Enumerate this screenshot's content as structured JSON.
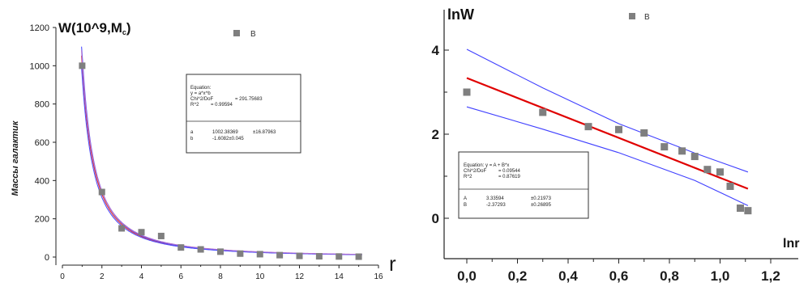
{
  "chart_data": [
    {
      "type": "scatter",
      "title": "",
      "ylabel_title": "W(10^9,M",
      "ylabel_title_subscript": "c",
      "ylabel_title_close": ")",
      "ylabel_rotated": "Массы галактик",
      "xlabel": "r",
      "xlim": [
        0,
        16
      ],
      "ylim": [
        0,
        1200
      ],
      "xticks": [
        "0",
        "2",
        "4",
        "6",
        "8",
        "10",
        "12",
        "14",
        "16"
      ],
      "yticks": [
        "0",
        "200",
        "400",
        "600",
        "800",
        "1000",
        "1200"
      ],
      "legend": {
        "symbol": "square",
        "label": "B",
        "placement": "top-center"
      },
      "series": [
        {
          "name": "B",
          "marker": "square",
          "color": "#7f7f7f",
          "points": [
            [
              1,
              1000
            ],
            [
              2,
              340
            ],
            [
              3,
              150
            ],
            [
              4,
              130
            ],
            [
              5,
              110
            ],
            [
              6,
              50
            ],
            [
              7,
              40
            ],
            [
              8,
              28
            ],
            [
              9,
              18
            ],
            [
              10,
              15
            ],
            [
              11,
              10
            ],
            [
              12,
              6
            ],
            [
              13,
              4
            ],
            [
              14,
              3
            ],
            [
              15,
              2
            ]
          ]
        }
      ],
      "fits": [
        {
          "kind": "power",
          "a": 1002.38369,
          "b": -1.6082,
          "role": "fit",
          "color": "#e03030"
        },
        {
          "kind": "power",
          "a": 1060,
          "b": -1.62,
          "role": "upper-band",
          "color": "#5050ff"
        },
        {
          "kind": "power",
          "a": 945,
          "b": -1.6,
          "role": "lower-band",
          "color": "#5050ff"
        },
        {
          "kind": "power",
          "a": 1030,
          "b": -1.58,
          "role": "band",
          "color": "#b070d0"
        }
      ],
      "equation_box": {
        "lines_top": [
          {
            "key": "Equation:",
            "value": ""
          },
          {
            "key": "y = a*x^b",
            "value": ""
          },
          {
            "key": "Chi^2/DoF",
            "value": "= 291.75683"
          },
          {
            "key": "R^2",
            "value": "= 0.99594"
          }
        ],
        "lines_bottom": [
          {
            "key": "a",
            "value": "1002.38369",
            "err": "±16.87963"
          },
          {
            "key": "b",
            "value": "-1.6082±0.045",
            "err": ""
          }
        ]
      }
    },
    {
      "type": "scatter",
      "title": "",
      "ylabel": "lnW",
      "xlabel": "lnr",
      "xlim": [
        -0.05,
        1.25
      ],
      "ylim": [
        -0.6,
        5.1
      ],
      "xticks": [
        {
          "v": 0.0,
          "label": "0,0"
        },
        {
          "v": 0.2,
          "label": "0,2"
        },
        {
          "v": 0.4,
          "label": "0,4"
        },
        {
          "v": 0.6,
          "label": "0,6"
        },
        {
          "v": 0.8,
          "label": "0,8"
        },
        {
          "v": 1.0,
          "label": "1,0"
        },
        {
          "v": 1.2,
          "label": "1,2"
        }
      ],
      "yticks": [
        {
          "v": 0,
          "label": "0"
        },
        {
          "v": 2,
          "label": "2"
        },
        {
          "v": 4,
          "label": "4"
        }
      ],
      "legend": {
        "symbol": "square",
        "label": "B",
        "placement": "top-center"
      },
      "series": [
        {
          "name": "B",
          "marker": "square",
          "color": "#7f7f7f",
          "points": [
            [
              0.0,
              3.0
            ],
            [
              0.3,
              2.52
            ],
            [
              0.48,
              2.18
            ],
            [
              0.6,
              2.11
            ],
            [
              0.7,
              2.03
            ],
            [
              0.78,
              1.7
            ],
            [
              0.85,
              1.6
            ],
            [
              0.9,
              1.47
            ],
            [
              0.95,
              1.16
            ],
            [
              1.0,
              1.1
            ],
            [
              1.04,
              0.76
            ],
            [
              1.08,
              0.24
            ],
            [
              1.11,
              0.18
            ]
          ]
        }
      ],
      "fit_line": {
        "A": 3.33594,
        "B": -2.37293,
        "x_range": [
          0.0,
          1.11
        ],
        "color": "#e00000"
      },
      "bands": [
        {
          "role": "upper",
          "color": "#4040ff",
          "points": [
            [
              0.0,
              4.02
            ],
            [
              0.3,
              3.1
            ],
            [
              0.6,
              2.25
            ],
            [
              0.9,
              1.55
            ],
            [
              1.11,
              1.1
            ]
          ]
        },
        {
          "role": "lower",
          "color": "#4040ff",
          "points": [
            [
              0.0,
              2.65
            ],
            [
              0.3,
              2.12
            ],
            [
              0.6,
              1.56
            ],
            [
              0.9,
              0.9
            ],
            [
              1.11,
              0.3
            ]
          ]
        }
      ],
      "equation_box": {
        "lines_top": [
          {
            "key": "Equation: y = A + B*x",
            "value": ""
          },
          {
            "key": "Chi^2/DoF",
            "value": "= 0.09544"
          },
          {
            "key": "R^2",
            "value": "= 0.87619"
          }
        ],
        "lines_bottom": [
          {
            "key": "A",
            "value": "3.33594",
            "err": "±0.21973"
          },
          {
            "key": "B",
            "value": "-2.37293",
            "err": "±0.26895"
          }
        ]
      }
    }
  ]
}
